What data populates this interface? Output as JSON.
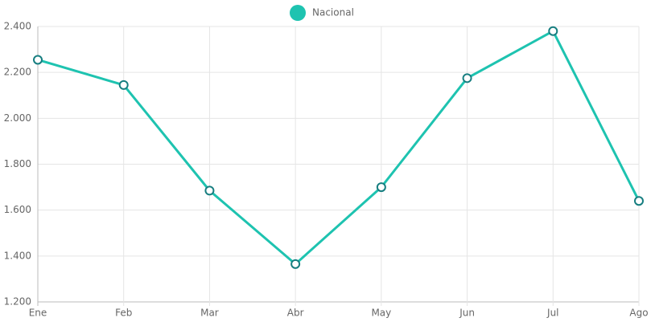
{
  "chart_data": {
    "type": "line",
    "categories": [
      "Ene",
      "Feb",
      "Mar",
      "Abr",
      "May",
      "Jun",
      "Jul",
      "Ago"
    ],
    "series": [
      {
        "name": "Nacional",
        "color": "#1ec3b0",
        "point_color": "#177e80",
        "values": [
          2255,
          2145,
          1685,
          1365,
          1700,
          2175,
          2380,
          1640
        ]
      }
    ],
    "ylim": [
      1200,
      2400
    ],
    "yticks": [
      {
        "value": 1200,
        "label": "1.200"
      },
      {
        "value": 1400,
        "label": "1.400"
      },
      {
        "value": 1600,
        "label": "1.600"
      },
      {
        "value": 1800,
        "label": "1.800"
      },
      {
        "value": 2000,
        "label": "2.000"
      },
      {
        "value": 2200,
        "label": "2.200"
      },
      {
        "value": 2400,
        "label": "2.400"
      }
    ],
    "grid": true,
    "legend": "top"
  }
}
